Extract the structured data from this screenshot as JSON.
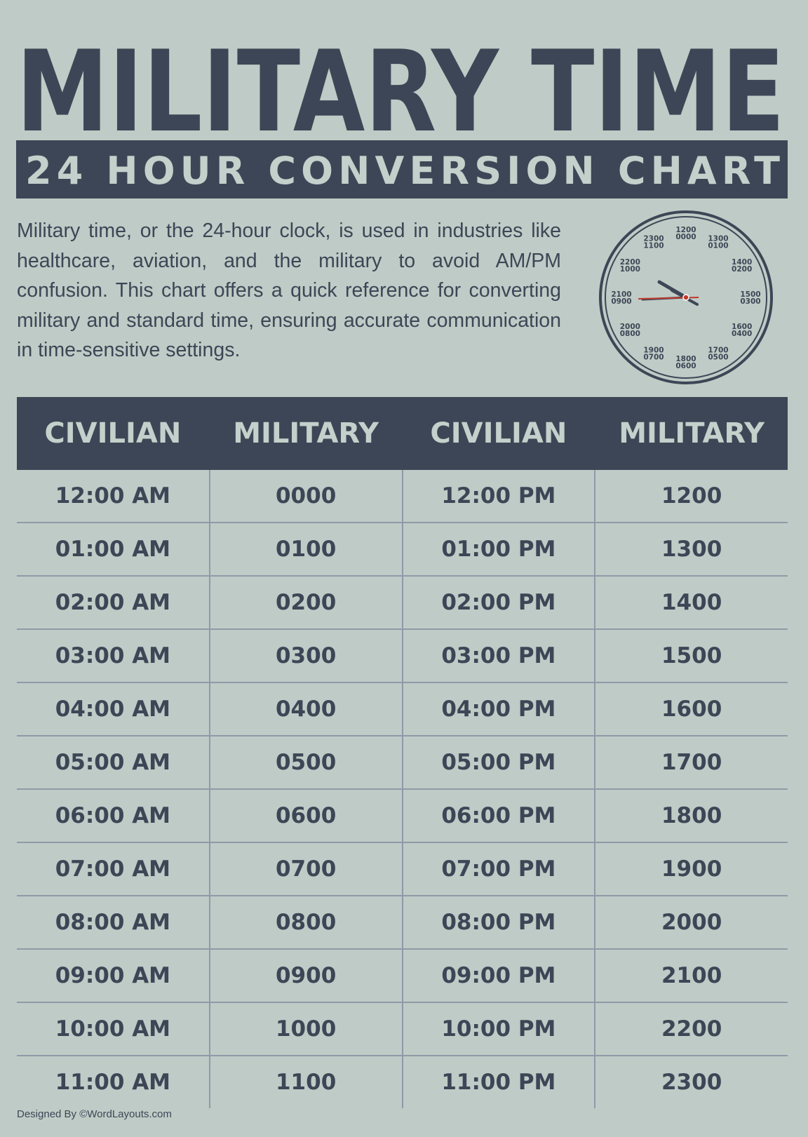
{
  "header": {
    "title": "MILITARY TIME",
    "subtitle": "24 HOUR CONVERSION CHART"
  },
  "intro": "Military time, or the 24-hour clock, is used in industries like healthcare, aviation, and the military to avoid AM/PM confusion. This chart offers a quick reference for converting military and standard time, ensuring accurate communication in time-sensitive settings.",
  "clock": {
    "labels": [
      [
        "1200",
        "0000"
      ],
      [
        "1300",
        "0100"
      ],
      [
        "1400",
        "0200"
      ],
      [
        "1500",
        "0300"
      ],
      [
        "1600",
        "0400"
      ],
      [
        "1700",
        "0500"
      ],
      [
        "1800",
        "0600"
      ],
      [
        "1900",
        "0700"
      ],
      [
        "2000",
        "0800"
      ],
      [
        "2100",
        "0900"
      ],
      [
        "2200",
        "1000"
      ],
      [
        "2300",
        "1100"
      ]
    ]
  },
  "table": {
    "header": [
      "CIVILIAN",
      "MILITARY",
      "CIVILIAN",
      "MILITARY"
    ],
    "rows": [
      [
        "12:00 AM",
        "0000",
        "12:00 PM",
        "1200"
      ],
      [
        "01:00 AM",
        "0100",
        "01:00 PM",
        "1300"
      ],
      [
        "02:00 AM",
        "0200",
        "02:00 PM",
        "1400"
      ],
      [
        "03:00 AM",
        "0300",
        "03:00 PM",
        "1500"
      ],
      [
        "04:00 AM",
        "0400",
        "04:00 PM",
        "1600"
      ],
      [
        "05:00 AM",
        "0500",
        "05:00 PM",
        "1700"
      ],
      [
        "06:00 AM",
        "0600",
        "06:00 PM",
        "1800"
      ],
      [
        "07:00 AM",
        "0700",
        "07:00 PM",
        "1900"
      ],
      [
        "08:00 AM",
        "0800",
        "08:00 PM",
        "2000"
      ],
      [
        "09:00 AM",
        "0900",
        "09:00 PM",
        "2100"
      ],
      [
        "10:00 AM",
        "1000",
        "10:00 PM",
        "2200"
      ],
      [
        "11:00 AM",
        "1100",
        "11:00 PM",
        "2300"
      ]
    ]
  },
  "footer": "Designed By ©WordLayouts.com"
}
